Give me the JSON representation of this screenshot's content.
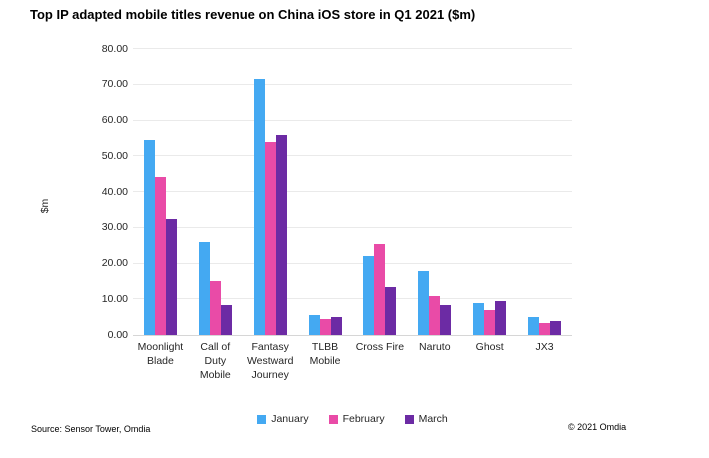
{
  "title": "Top IP adapted mobile titles revenue on China iOS store in Q1 2021 ($m)",
  "footer": {
    "source": "Source: Sensor Tower, Omdia",
    "copyright": "© 2021 Omdia"
  },
  "colors": {
    "january": "#44A9F2",
    "february": "#E94BA7",
    "march": "#6C2BA4",
    "gridline": "#EAEAEA",
    "axis_line": "#D6D6D6"
  },
  "chart_data": {
    "type": "bar",
    "title": "Top IP adapted mobile titles revenue on China iOS store in Q1 2021 ($m)",
    "xlabel": "",
    "ylabel": "$m",
    "ylim": [
      0,
      80
    ],
    "ytick_step": 10,
    "ytick_decimals": 2,
    "grid": true,
    "legend_position": "bottom",
    "categories": [
      "Moonlight Blade",
      "Call of Duty Mobile",
      "Fantasy Westward Journey",
      "TLBB Mobile",
      "Cross Fire",
      "Naruto",
      "Ghost",
      "JX3"
    ],
    "series": [
      {
        "name": "January",
        "color": "#44A9F2",
        "values": [
          54.5,
          26.0,
          71.5,
          5.7,
          22.0,
          18.0,
          8.9,
          5.0
        ]
      },
      {
        "name": "February",
        "color": "#E94BA7",
        "values": [
          44.3,
          15.0,
          54.0,
          4.4,
          25.4,
          10.9,
          7.0,
          3.5
        ]
      },
      {
        "name": "March",
        "color": "#6C2BA4",
        "values": [
          32.4,
          8.3,
          56.0,
          4.9,
          13.4,
          8.5,
          9.4,
          3.9
        ]
      }
    ]
  }
}
